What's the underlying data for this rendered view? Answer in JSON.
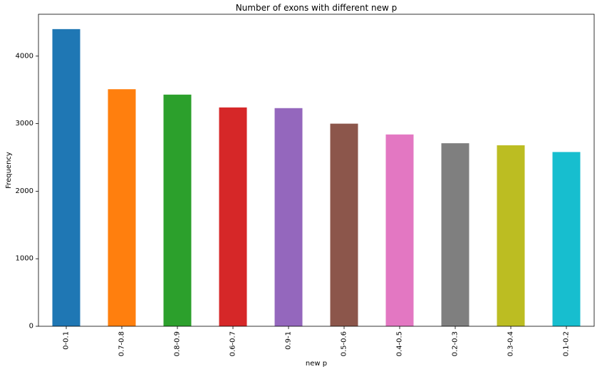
{
  "chart_data": {
    "type": "bar",
    "title": "Number of exons with different new p",
    "xlabel": "new p",
    "ylabel": "Frequency",
    "categories": [
      "0-0.1",
      "0.7-0.8",
      "0.8-0.9",
      "0.6-0.7",
      "0.9-1",
      "0.5-0.6",
      "0.4-0.5",
      "0.2-0.3",
      "0.3-0.4",
      "0.1-0.2"
    ],
    "values": [
      4400,
      3510,
      3430,
      3240,
      3230,
      3000,
      2840,
      2710,
      2680,
      2580
    ],
    "colors": [
      "#1f77b4",
      "#ff7f0e",
      "#2ca02c",
      "#d62728",
      "#9467bd",
      "#8c564b",
      "#e377c2",
      "#7f7f7f",
      "#bcbd22",
      "#17becf"
    ],
    "ylim": [
      0,
      4620
    ],
    "yticks": [
      0,
      1000,
      2000,
      3000,
      4000
    ],
    "grid": false,
    "legend": "none"
  }
}
